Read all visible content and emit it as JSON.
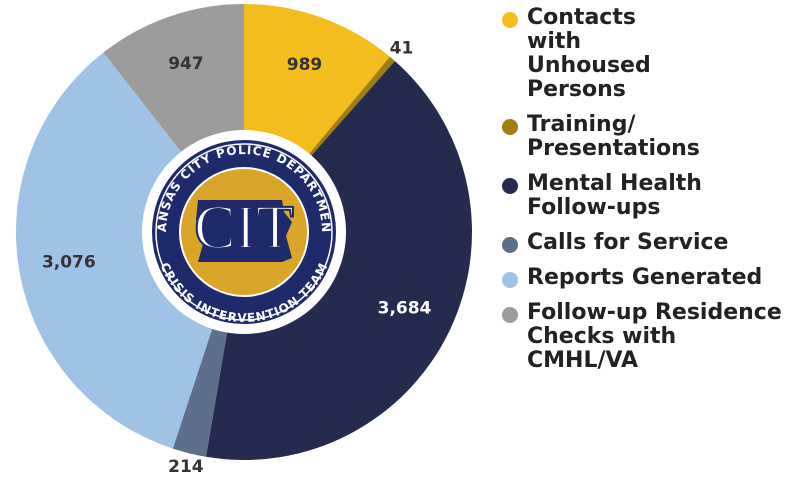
{
  "chart_data": {
    "type": "donut",
    "categories": [
      "Contacts with Unhoused Persons",
      "Training/ Presentations",
      "Mental Health Follow-ups",
      "Calls for Service",
      "Reports Generated",
      "Follow-up Residence Checks with CMHL/VA"
    ],
    "values": [
      989,
      41,
      3684,
      214,
      3076,
      947
    ],
    "value_labels": [
      "989",
      "41",
      "3,684",
      "214",
      "3,076",
      "947"
    ],
    "colors": [
      "#f2bd1d",
      "#a07e10",
      "#252b4f",
      "#5e7089",
      "#9fc3e6",
      "#9c9c9c"
    ]
  },
  "logo": {
    "top_text": "KANSAS CITY POLICE DEPARTMENT",
    "bottom_text": "CRISIS INTERVENTION TEAM",
    "center_text": "CIT"
  }
}
